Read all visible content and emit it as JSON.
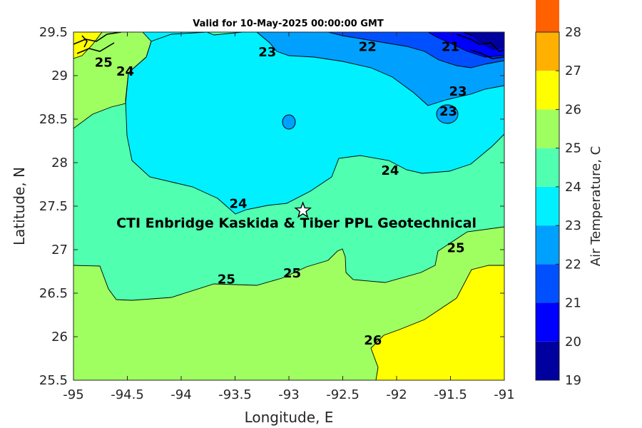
{
  "chart_data": {
    "type": "heatmap",
    "title": "Valid for 10-May-2025 00:00:00 GMT",
    "xlabel": "Longitude, E",
    "ylabel": "Latitude, N",
    "xlim": [
      -95,
      -91
    ],
    "ylim": [
      25.5,
      29.5
    ],
    "x_ticks": [
      -95,
      -94.5,
      -94,
      -93.5,
      -93,
      -92.5,
      -92,
      -91.5,
      -91
    ],
    "y_ticks": [
      25.5,
      26,
      26.5,
      27,
      27.5,
      28,
      28.5,
      29,
      29.5
    ],
    "colorbar": {
      "label": "Air Temperature, C",
      "range": [
        19,
        28
      ],
      "ticks": [
        19,
        20,
        21,
        22,
        23,
        24,
        25,
        26,
        27,
        28
      ],
      "colors": [
        "#00009f",
        "#0000ff",
        "#0050ff",
        "#00a0ff",
        "#00f0ff",
        "#50ffaf",
        "#a0ff60",
        "#ffff00",
        "#ffb000",
        "#ff6000"
      ]
    },
    "filled_bands": [
      {
        "range": [
          19,
          20
        ],
        "color": "#00009f"
      },
      {
        "range": [
          20,
          21
        ],
        "color": "#0000ff"
      },
      {
        "range": [
          21,
          22
        ],
        "color": "#0050ff"
      },
      {
        "range": [
          22,
          23
        ],
        "color": "#00a0ff"
      },
      {
        "range": [
          23,
          24
        ],
        "color": "#00f0ff"
      },
      {
        "range": [
          24,
          25
        ],
        "color": "#50ffaf"
      },
      {
        "range": [
          25,
          26
        ],
        "color": "#a0ff60"
      },
      {
        "range": [
          26,
          27
        ],
        "color": "#ffff00"
      }
    ],
    "contour_labels": [
      {
        "text": "25",
        "lon": -94.72,
        "lat": 29.15
      },
      {
        "text": "24",
        "lon": -94.52,
        "lat": 29.05
      },
      {
        "text": "23",
        "lon": -93.2,
        "lat": 29.27
      },
      {
        "text": "22",
        "lon": -92.27,
        "lat": 29.33
      },
      {
        "text": "21",
        "lon": -91.5,
        "lat": 29.33
      },
      {
        "text": "23",
        "lon": -91.43,
        "lat": 28.82
      },
      {
        "text": "23",
        "lon": -91.52,
        "lat": 28.59
      },
      {
        "text": "24",
        "lon": -92.06,
        "lat": 27.91
      },
      {
        "text": "24",
        "lon": -93.47,
        "lat": 27.53
      },
      {
        "text": "25",
        "lon": -91.45,
        "lat": 27.02
      },
      {
        "text": "25",
        "lon": -93.58,
        "lat": 26.66
      },
      {
        "text": "25",
        "lon": -92.97,
        "lat": 26.73
      },
      {
        "text": "26",
        "lon": -92.22,
        "lat": 25.96
      }
    ],
    "site_marker": {
      "symbol": "star",
      "lon": -92.87,
      "lat": 27.45
    },
    "annotation": {
      "text": "CTI Enbridge  Kaskida & Tiber PPL Geotechnical",
      "lon": -92.93,
      "lat": 27.31
    }
  }
}
